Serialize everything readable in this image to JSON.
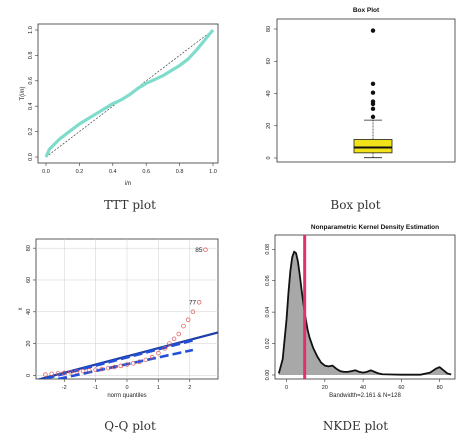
{
  "chart_data": [
    {
      "type": "line",
      "id": "ttt",
      "caption": "TTT plot",
      "title": "",
      "xlabel": "i/n",
      "ylabel": "T(i/n)",
      "xlim": [
        0,
        1
      ],
      "ylim": [
        0,
        1
      ],
      "xticks": [
        "0.0",
        "0.2",
        "0.4",
        "0.6",
        "0.8",
        "1.0"
      ],
      "yticks": [
        "0.0",
        "0.2",
        "0.4",
        "0.6",
        "0.8",
        "1.0"
      ],
      "series": [
        {
          "color": "#7fdccc",
          "x": [
            0,
            0.02,
            0.05,
            0.08,
            0.1,
            0.15,
            0.2,
            0.25,
            0.3,
            0.35,
            0.4,
            0.45,
            0.5,
            0.55,
            0.6,
            0.65,
            0.7,
            0.75,
            0.8,
            0.85,
            0.9,
            0.95,
            1.0
          ],
          "y": [
            0,
            0.06,
            0.1,
            0.14,
            0.16,
            0.21,
            0.26,
            0.3,
            0.34,
            0.38,
            0.42,
            0.45,
            0.49,
            0.54,
            0.58,
            0.61,
            0.64,
            0.68,
            0.72,
            0.77,
            0.84,
            0.92,
            1.0
          ]
        }
      ],
      "reference_line": {
        "x": [
          0,
          1
        ],
        "y": [
          0,
          1
        ],
        "style": "dashed"
      }
    },
    {
      "type": "box",
      "id": "box",
      "caption": "Box plot",
      "title": "Box Plot",
      "ylim": [
        0,
        80
      ],
      "yticks": [
        "0",
        "20",
        "40",
        "60",
        "80"
      ],
      "box": {
        "min": 0.2,
        "q1": 3.2,
        "median": 6.5,
        "q3": 11.5,
        "whisker_high": 23.5,
        "fill": "#f2e21a"
      },
      "outliers": [
        25.5,
        30.5,
        33.5,
        35,
        40.5,
        46,
        79
      ]
    },
    {
      "type": "scatter",
      "id": "qq",
      "caption": "Q-Q plot",
      "title": "",
      "xlabel": "norm quantiles",
      "ylabel": "x",
      "xlim": [
        -2.9,
        2.9
      ],
      "ylim": [
        -1,
        82
      ],
      "xticks": [
        "-2",
        "-1",
        "0",
        "1",
        "2"
      ],
      "yticks": [
        "0",
        "20",
        "40",
        "60",
        "80"
      ],
      "points": {
        "color": "#e05555",
        "x": [
          -2.6,
          -2.4,
          -2.2,
          -2.0,
          -1.8,
          -1.6,
          -1.4,
          -1.2,
          -1.0,
          -0.8,
          -0.6,
          -0.4,
          -0.2,
          0,
          0.2,
          0.4,
          0.6,
          0.8,
          1.0,
          1.2,
          1.35,
          1.5,
          1.65,
          1.8,
          1.95,
          2.1,
          2.3,
          2.5
        ],
        "y": [
          0.5,
          1.0,
          1.3,
          1.6,
          2.0,
          2.4,
          2.8,
          3.2,
          3.6,
          4.0,
          4.6,
          5.2,
          6.0,
          6.8,
          7.6,
          8.6,
          9.8,
          11.5,
          14,
          17,
          20,
          23,
          26,
          31,
          35,
          40,
          46,
          79
        ]
      },
      "labels": [
        {
          "text": "77",
          "x": 2.3,
          "y": 46
        },
        {
          "text": "85",
          "x": 2.5,
          "y": 79
        }
      ],
      "lines": [
        {
          "color": "#1f3ea8",
          "style": "solid",
          "x": [
            -2.9,
            2.9
          ],
          "y": [
            -3,
            27
          ]
        },
        {
          "color": "#2050d8",
          "style": "dashed",
          "x": [
            -2.6,
            2.1
          ],
          "y": [
            -2,
            22
          ]
        },
        {
          "color": "#2050d8",
          "style": "dashed",
          "x": [
            -2.6,
            2.1
          ],
          "y": [
            -4,
            16
          ]
        }
      ]
    },
    {
      "type": "area",
      "id": "nkde",
      "caption": "NKDE plot",
      "title": "Nonparametric Kernel Density Estimation",
      "xlabel": "Bandwidth=2.161 & N=128",
      "xlim": [
        -6,
        88
      ],
      "ylim": [
        0,
        0.084
      ],
      "xticks": [
        "0",
        "20",
        "40",
        "60",
        "80"
      ],
      "yticks": [
        "0.00",
        "0.02",
        "0.04",
        "0.06",
        "0.08"
      ],
      "density": {
        "fill": "#a8a8a8",
        "x": [
          -4,
          -2,
          0,
          1,
          2,
          3,
          4,
          5,
          6,
          7,
          8,
          9,
          10,
          11,
          12,
          14,
          16,
          18,
          20,
          22,
          24,
          26,
          28,
          30,
          32,
          34,
          36,
          38,
          40,
          42,
          44,
          46,
          48,
          50,
          55,
          60,
          65,
          70,
          75,
          78,
          80,
          82,
          84,
          86
        ],
        "y": [
          0.001,
          0.01,
          0.035,
          0.052,
          0.066,
          0.075,
          0.0785,
          0.0775,
          0.072,
          0.063,
          0.053,
          0.044,
          0.036,
          0.029,
          0.024,
          0.017,
          0.012,
          0.008,
          0.006,
          0.0055,
          0.006,
          0.004,
          0.0025,
          0.002,
          0.002,
          0.0025,
          0.003,
          0.002,
          0.0015,
          0.002,
          0.003,
          0.002,
          0.001,
          0.0005,
          0.0003,
          0.0002,
          0.0002,
          0.0002,
          0.0015,
          0.004,
          0.005,
          0.003,
          0.001,
          0.0003
        ]
      },
      "vline": {
        "x": 9.5,
        "color": "#e0306e"
      }
    }
  ]
}
